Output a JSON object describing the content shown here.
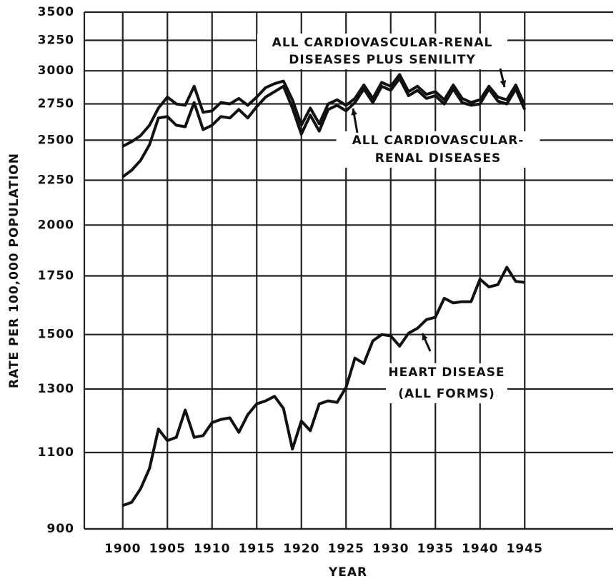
{
  "chart_data": {
    "type": "line",
    "xlabel": "YEAR",
    "ylabel": "RATE PER 100,000 POPULATION",
    "log_y": true,
    "grid": true,
    "color": "#111111",
    "xlim": [
      1895.7,
      1954.9
    ],
    "ylim": [
      900,
      3500
    ],
    "xticks": [
      1900,
      1905,
      1910,
      1915,
      1920,
      1925,
      1930,
      1935,
      1940,
      1945
    ],
    "yticks": [
      900,
      1100,
      1300,
      1500,
      1750,
      2000,
      2250,
      2500,
      2750,
      3000,
      3250,
      3500
    ],
    "x": [
      1900,
      1901,
      1902,
      1903,
      1904,
      1905,
      1906,
      1907,
      1908,
      1909,
      1910,
      1911,
      1912,
      1913,
      1914,
      1915,
      1916,
      1917,
      1918,
      1919,
      1920,
      1921,
      1922,
      1923,
      1924,
      1925,
      1926,
      1927,
      1928,
      1929,
      1930,
      1931,
      1932,
      1933,
      1934,
      1935,
      1936,
      1937,
      1938,
      1939,
      1940,
      1941,
      1942,
      1943,
      1944,
      1945
    ],
    "series": [
      {
        "color": "#111111",
        "values": [
          2460,
          2490,
          2530,
          2600,
          2720,
          2800,
          2750,
          2740,
          2880,
          2690,
          2700,
          2760,
          2750,
          2790,
          2740,
          2800,
          2870,
          2900,
          2920,
          2780,
          2600,
          2720,
          2610,
          2750,
          2780,
          2740,
          2790,
          2890,
          2790,
          2910,
          2880,
          2970,
          2840,
          2880,
          2820,
          2840,
          2780,
          2890,
          2790,
          2760,
          2780,
          2880,
          2800,
          2780,
          2890,
          2740
        ]
      },
      {
        "color": "#111111",
        "values": [
          2270,
          2310,
          2370,
          2470,
          2650,
          2660,
          2600,
          2590,
          2760,
          2570,
          2600,
          2660,
          2650,
          2710,
          2650,
          2730,
          2800,
          2840,
          2880,
          2720,
          2540,
          2670,
          2560,
          2710,
          2740,
          2700,
          2760,
          2860,
          2760,
          2880,
          2850,
          2940,
          2810,
          2850,
          2790,
          2810,
          2750,
          2860,
          2760,
          2740,
          2750,
          2860,
          2770,
          2750,
          2860,
          2710
        ]
      },
      {
        "color": "#111111",
        "values": [
          957,
          965,
          1000,
          1055,
          1170,
          1135,
          1145,
          1230,
          1145,
          1150,
          1190,
          1200,
          1205,
          1160,
          1215,
          1250,
          1260,
          1275,
          1235,
          1110,
          1195,
          1165,
          1250,
          1260,
          1255,
          1305,
          1410,
          1390,
          1475,
          1500,
          1495,
          1455,
          1505,
          1525,
          1560,
          1570,
          1650,
          1630,
          1635,
          1635,
          1735,
          1700,
          1710,
          1790,
          1725,
          1720
        ]
      }
    ],
    "annotations": [
      {
        "lines": [
          "ALL CARDIOVASCULAR-RENAL",
          "DISEASES PLUS SENILITY"
        ]
      },
      {
        "lines": [
          "ALL CARDIOVASCULAR-",
          "RENAL DISEASES"
        ]
      },
      {
        "lines": [
          "HEART DISEASE",
          "(ALL FORMS)"
        ]
      }
    ]
  }
}
